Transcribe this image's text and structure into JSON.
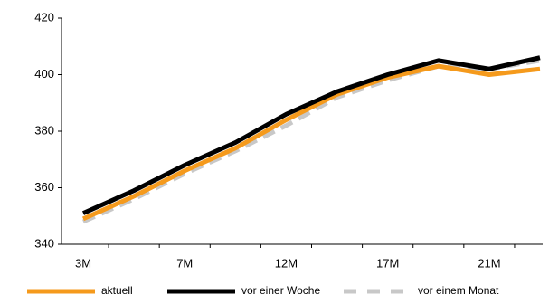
{
  "chart_data": {
    "type": "line",
    "categories": [
      "3M",
      null,
      "7M",
      null,
      "12M",
      null,
      "17M",
      null,
      "21M",
      null
    ],
    "series": [
      {
        "name": "aktuell",
        "color": "#f59a1c",
        "dash": false,
        "values": [
          349,
          357,
          366,
          374,
          384,
          393,
          399,
          403,
          400,
          402
        ]
      },
      {
        "name": "vor einer Woche",
        "color": "#000000",
        "dash": false,
        "values": [
          351,
          359,
          368,
          376,
          386,
          394,
          400,
          405,
          402,
          406
        ]
      },
      {
        "name": "vor einem Monat",
        "color": "#c8c8c8",
        "dash": true,
        "values": [
          348,
          356,
          365,
          373,
          382,
          392,
          398,
          403,
          402,
          405
        ]
      }
    ],
    "ylim": [
      340,
      420
    ],
    "yticks": [
      340,
      360,
      380,
      400,
      420
    ],
    "grid": false,
    "legend": "bottom"
  }
}
